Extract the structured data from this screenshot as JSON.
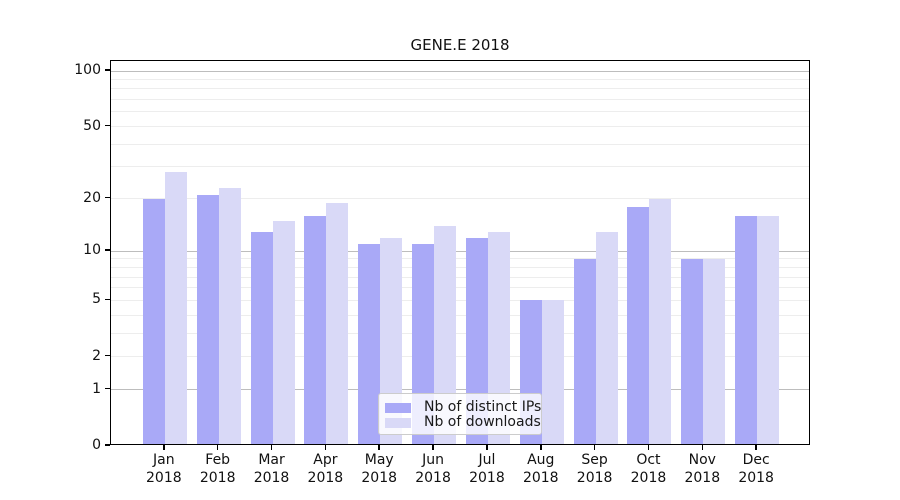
{
  "title": "GENE.E 2018",
  "chart_data": {
    "type": "bar",
    "title": "GENE.E 2018",
    "scale": "log-like (position proportional to log10(value+1))",
    "grid": "horizontal, minor light lines at 2-9 and 20-90, darker lines at 1, 10, 100",
    "legend_position": "bottom-center inside plot",
    "categories": [
      "Jan",
      "Feb",
      "Mar",
      "Apr",
      "May",
      "Jun",
      "Jul",
      "Aug",
      "Sep",
      "Oct",
      "Nov",
      "Dec"
    ],
    "year_label": "2018",
    "series": [
      {
        "name": "Nb of distinct IPs",
        "color": "#a9a9f7",
        "values": [
          20,
          21,
          13,
          16,
          11,
          11,
          12,
          5,
          9,
          18,
          9,
          16
        ]
      },
      {
        "name": "Nb of downloads",
        "color": "#d9d9f7",
        "values": [
          28,
          23,
          15,
          19,
          12,
          14,
          13,
          5,
          13,
          20,
          9,
          16
        ]
      }
    ],
    "yticks_top_to_bottom": [
      "100",
      "50",
      "20",
      "10",
      "5",
      "2",
      "1",
      "0"
    ],
    "ylim": [
      0,
      113
    ],
    "xlabel": "",
    "ylabel": ""
  },
  "colors": {
    "background": "#ffffff",
    "axis": "#000000",
    "grid_minor": "#ededed",
    "grid_major": "#bdbdbd",
    "text": "#111111"
  }
}
